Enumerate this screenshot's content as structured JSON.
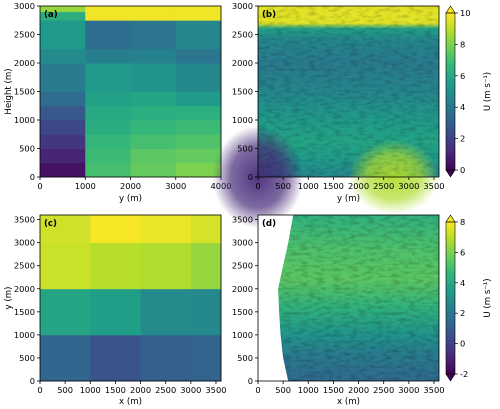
{
  "colors": {
    "viridis": [
      "#440154",
      "#482878",
      "#3e4989",
      "#31688e",
      "#26828e",
      "#1f9e89",
      "#35b779",
      "#6ece58",
      "#b5de2b",
      "#fde725"
    ],
    "no_data": "#ffffff"
  },
  "chart_data": [
    {
      "id": "a",
      "type": "heatmap",
      "panel_label": "(a)",
      "xlabel": "y (m)",
      "ylabel": "Height (m)",
      "xlim": [
        0,
        4000
      ],
      "ylim": [
        0,
        3000
      ],
      "xticks": [
        0,
        1000,
        2000,
        3000,
        4000
      ],
      "yticks": [
        0,
        500,
        1000,
        1500,
        2000,
        2500,
        3000
      ],
      "vmin": 0,
      "vmax": 10,
      "columns": [
        {
          "x0": 0,
          "x1": 1000,
          "cells": [
            {
              "y0": 0,
              "y1": 250,
              "v": 0.5
            },
            {
              "y0": 250,
              "y1": 500,
              "v": 1.0
            },
            {
              "y0": 500,
              "y1": 750,
              "v": 1.6
            },
            {
              "y0": 750,
              "y1": 1000,
              "v": 2.2
            },
            {
              "y0": 1000,
              "y1": 1250,
              "v": 2.8
            },
            {
              "y0": 1250,
              "y1": 1500,
              "v": 3.5
            },
            {
              "y0": 1500,
              "y1": 2000,
              "v": 4.2
            },
            {
              "y0": 2000,
              "y1": 2250,
              "v": 4.8
            },
            {
              "y0": 2250,
              "y1": 2750,
              "v": 5.4
            },
            {
              "y0": 2750,
              "y1": 2900,
              "v": 6.2
            },
            {
              "y0": 2900,
              "y1": 3000,
              "v": 8.4
            }
          ]
        },
        {
          "x0": 1000,
          "x1": 2000,
          "cells": [
            {
              "y0": 0,
              "y1": 250,
              "v": 7.0
            },
            {
              "y0": 250,
              "y1": 500,
              "v": 6.8
            },
            {
              "y0": 500,
              "y1": 750,
              "v": 6.6
            },
            {
              "y0": 750,
              "y1": 1000,
              "v": 6.2
            },
            {
              "y0": 1000,
              "y1": 1250,
              "v": 6.0
            },
            {
              "y0": 1250,
              "y1": 1500,
              "v": 5.7
            },
            {
              "y0": 1500,
              "y1": 2000,
              "v": 5.4
            },
            {
              "y0": 2000,
              "y1": 2250,
              "v": 4.3
            },
            {
              "y0": 2250,
              "y1": 2750,
              "v": 3.6
            },
            {
              "y0": 2750,
              "y1": 2900,
              "v": 9.8
            },
            {
              "y0": 2900,
              "y1": 3000,
              "v": 9.8
            }
          ]
        },
        {
          "x0": 2000,
          "x1": 3000,
          "cells": [
            {
              "y0": 0,
              "y1": 250,
              "v": 7.6
            },
            {
              "y0": 250,
              "y1": 500,
              "v": 7.4
            },
            {
              "y0": 500,
              "y1": 750,
              "v": 7.0
            },
            {
              "y0": 750,
              "y1": 1000,
              "v": 6.6
            },
            {
              "y0": 1000,
              "y1": 1250,
              "v": 6.2
            },
            {
              "y0": 1250,
              "y1": 1500,
              "v": 5.8
            },
            {
              "y0": 1500,
              "y1": 2000,
              "v": 5.2
            },
            {
              "y0": 2000,
              "y1": 2250,
              "v": 4.4
            },
            {
              "y0": 2250,
              "y1": 2750,
              "v": 3.9
            },
            {
              "y0": 2750,
              "y1": 2900,
              "v": 9.8
            },
            {
              "y0": 2900,
              "y1": 3000,
              "v": 9.8
            }
          ]
        },
        {
          "x0": 3000,
          "x1": 4000,
          "cells": [
            {
              "y0": 0,
              "y1": 250,
              "v": 8.0
            },
            {
              "y0": 250,
              "y1": 500,
              "v": 7.6
            },
            {
              "y0": 500,
              "y1": 750,
              "v": 7.2
            },
            {
              "y0": 750,
              "y1": 1000,
              "v": 6.8
            },
            {
              "y0": 1000,
              "y1": 1250,
              "v": 6.3
            },
            {
              "y0": 1250,
              "y1": 1500,
              "v": 5.4
            },
            {
              "y0": 1500,
              "y1": 2000,
              "v": 4.7
            },
            {
              "y0": 2000,
              "y1": 2250,
              "v": 3.9
            },
            {
              "y0": 2250,
              "y1": 2750,
              "v": 4.6
            },
            {
              "y0": 2750,
              "y1": 2900,
              "v": 9.8
            },
            {
              "y0": 2900,
              "y1": 3000,
              "v": 9.8
            }
          ]
        }
      ]
    },
    {
      "id": "b",
      "type": "heatmap",
      "panel_label": "(b)",
      "xlabel": "y (m)",
      "ylabel": "",
      "xlim": [
        0,
        3600
      ],
      "ylim": [
        0,
        3000
      ],
      "xticks": [
        0,
        500,
        1000,
        1500,
        2000,
        2500,
        3000,
        3500
      ],
      "yticks": [
        0,
        500,
        1000,
        1500,
        2000,
        2500,
        3000
      ],
      "vmin": 0,
      "vmax": 10,
      "profile": [
        {
          "z": 0,
          "v": 4.6
        },
        {
          "z": 300,
          "v": 5.4
        },
        {
          "z": 600,
          "v": 5.8
        },
        {
          "z": 1000,
          "v": 5.4
        },
        {
          "z": 1500,
          "v": 4.6
        },
        {
          "z": 2000,
          "v": 4.1
        },
        {
          "z": 2400,
          "v": 4.6
        },
        {
          "z": 2600,
          "v": 5.6
        },
        {
          "z": 2700,
          "v": 9.6
        },
        {
          "z": 3000,
          "v": 9.6
        }
      ],
      "features": [
        {
          "kind": "low_speed_region",
          "x": [
            0,
            900
          ],
          "z": [
            0,
            900
          ],
          "v": 1.2
        },
        {
          "kind": "high_speed_region",
          "x": [
            1800,
            3600
          ],
          "z": [
            0,
            650
          ],
          "v": 8.8
        }
      ],
      "colorbar": {
        "label": "U (m s⁻¹)",
        "ticks": [
          0,
          2,
          4,
          6,
          8,
          10
        ],
        "extend": "both"
      }
    },
    {
      "id": "c",
      "type": "heatmap",
      "panel_label": "(c)",
      "xlabel": "x (m)",
      "ylabel": "y (m)",
      "xlim": [
        0,
        3600
      ],
      "ylim": [
        0,
        3600
      ],
      "xticks": [
        0,
        500,
        1000,
        1500,
        2000,
        2500,
        3000,
        3500
      ],
      "yticks": [
        0,
        500,
        1000,
        1500,
        2000,
        2500,
        3000,
        3500
      ],
      "vmin": -2,
      "vmax": 8,
      "columns": [
        {
          "x0": 0,
          "x1": 1000,
          "cells": [
            {
              "y0": 0,
              "y1": 1000,
              "v": 1.3
            },
            {
              "y0": 1000,
              "y1": 2000,
              "v": 3.8
            },
            {
              "y0": 2000,
              "y1": 3000,
              "v": 7.2
            },
            {
              "y0": 3000,
              "y1": 3600,
              "v": 7.3
            }
          ]
        },
        {
          "x0": 1000,
          "x1": 2000,
          "cells": [
            {
              "y0": 0,
              "y1": 1000,
              "v": 0.6
            },
            {
              "y0": 1000,
              "y1": 2000,
              "v": 3.6
            },
            {
              "y0": 2000,
              "y1": 3000,
              "v": 6.9
            },
            {
              "y0": 3000,
              "y1": 3600,
              "v": 7.9
            }
          ]
        },
        {
          "x0": 2000,
          "x1": 3000,
          "cells": [
            {
              "y0": 0,
              "y1": 1000,
              "v": 1.0
            },
            {
              "y0": 1000,
              "y1": 2000,
              "v": 2.8
            },
            {
              "y0": 2000,
              "y1": 3000,
              "v": 6.8
            },
            {
              "y0": 3000,
              "y1": 3600,
              "v": 7.7
            }
          ]
        },
        {
          "x0": 3000,
          "x1": 3600,
          "cells": [
            {
              "y0": 0,
              "y1": 1000,
              "v": 1.2
            },
            {
              "y0": 1000,
              "y1": 2000,
              "v": 2.7
            },
            {
              "y0": 2000,
              "y1": 3000,
              "v": 6.4
            },
            {
              "y0": 3000,
              "y1": 3600,
              "v": 7.4
            }
          ]
        }
      ]
    },
    {
      "id": "d",
      "type": "heatmap",
      "panel_label": "(d)",
      "xlabel": "x (m)",
      "ylabel": "",
      "xlim": [
        0,
        3600
      ],
      "ylim": [
        0,
        3600
      ],
      "xticks": [
        0,
        500,
        1000,
        1500,
        2000,
        2500,
        3000,
        3500
      ],
      "yticks": [
        0,
        500,
        1000,
        1500,
        2000,
        2500,
        3000,
        3500
      ],
      "vmin": -2,
      "vmax": 8,
      "profile": [
        {
          "z": 0,
          "v": 1.4
        },
        {
          "z": 600,
          "v": 2.2
        },
        {
          "z": 1000,
          "v": 3.2
        },
        {
          "z": 1600,
          "v": 4.4
        },
        {
          "z": 2200,
          "v": 5.4
        },
        {
          "z": 2800,
          "v": 5.2
        },
        {
          "z": 3600,
          "v": 4.4
        }
      ],
      "no_data_boundary": [
        {
          "y": 3600,
          "x": 700
        },
        {
          "y": 3000,
          "x": 600
        },
        {
          "y": 2500,
          "x": 500
        },
        {
          "y": 2000,
          "x": 400
        },
        {
          "y": 1500,
          "x": 420
        },
        {
          "y": 1000,
          "x": 450
        },
        {
          "y": 500,
          "x": 500
        },
        {
          "y": 0,
          "x": 600
        }
      ],
      "colorbar": {
        "label": "U (m s⁻¹)",
        "ticks": [
          -2,
          0,
          2,
          4,
          6,
          8
        ],
        "extend": "both"
      }
    }
  ]
}
